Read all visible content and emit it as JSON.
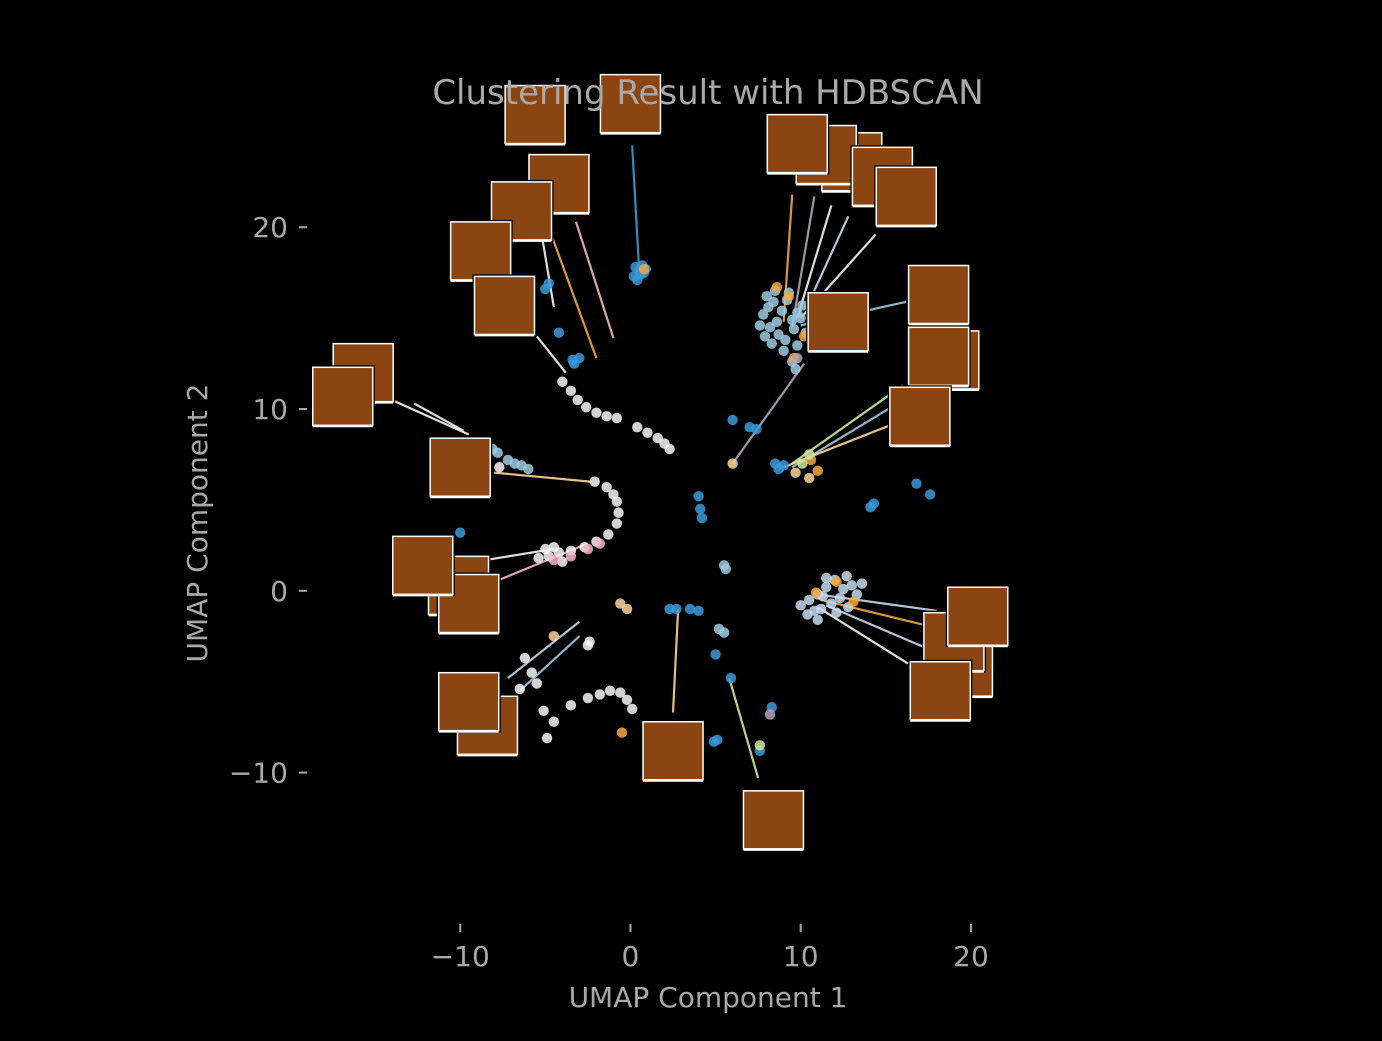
{
  "chart_data": {
    "type": "scatter",
    "title": "Clustering Result with HDBSCAN",
    "xlabel": "UMAP Component 1",
    "ylabel": "UMAP Component 2",
    "xlim": [
      -19,
      22
    ],
    "ylim": [
      -18,
      27
    ],
    "xticks": [
      -10,
      0,
      10,
      20
    ],
    "xtick_labels": [
      "−10",
      "0",
      "10",
      "20"
    ],
    "yticks": [
      -10,
      0,
      10,
      20
    ],
    "ytick_labels": [
      "−10",
      "0",
      "10",
      "20"
    ],
    "grid": false,
    "legend": "none",
    "colors": {
      "background": "#000000",
      "text": "#a8a8a8",
      "thumbnail": "#8b4513",
      "palette": [
        "#3a9ad9",
        "#9ecae1",
        "#c6dbef",
        "#f4a742",
        "#fdd49e",
        "#f7f7f7",
        "#f4b6c2",
        "#cfe89a",
        "#b5a3b8"
      ]
    },
    "clusters": [
      {
        "color": "#3a9ad9",
        "points": [
          [
            0.5,
            17.6
          ],
          [
            0.2,
            17.3
          ],
          [
            0.7,
            17.9
          ],
          [
            0.4,
            17.1
          ],
          [
            0.8,
            17.5
          ],
          [
            0.3,
            17.8
          ],
          [
            0.6,
            17.4
          ],
          [
            0.9,
            17.7
          ],
          [
            -5.0,
            16.6
          ],
          [
            -4.8,
            16.9
          ],
          [
            -4.2,
            14.2
          ],
          [
            4.0,
            5.2
          ],
          [
            4.1,
            4.5
          ],
          [
            4.2,
            4.0
          ],
          [
            5.0,
            -3.5
          ],
          [
            5.9,
            -4.8
          ],
          [
            8.3,
            -6.4
          ],
          [
            7.6,
            -8.8
          ],
          [
            5.1,
            -8.2
          ],
          [
            4.9,
            -8.3
          ],
          [
            16.8,
            5.9
          ],
          [
            17.6,
            5.3
          ],
          [
            14.3,
            4.8
          ],
          [
            14.1,
            4.6
          ],
          [
            -10.0,
            3.2
          ],
          [
            6.0,
            9.4
          ],
          [
            7.0,
            9.0
          ],
          [
            7.4,
            8.9
          ],
          [
            8.5,
            7.0
          ],
          [
            9.0,
            6.9
          ],
          [
            8.7,
            6.7
          ],
          [
            -3.3,
            12.5
          ],
          [
            -3.0,
            12.8
          ],
          [
            -3.4,
            12.7
          ],
          [
            2.3,
            -1.0
          ],
          [
            2.7,
            -1.0
          ],
          [
            3.5,
            -1.0
          ],
          [
            4.0,
            -1.1
          ]
        ]
      },
      {
        "color": "#9ecae1",
        "points": [
          [
            7.8,
            15.2
          ],
          [
            8.1,
            15.6
          ],
          [
            8.4,
            15.9
          ],
          [
            8.6,
            14.8
          ],
          [
            8.9,
            15.4
          ],
          [
            9.2,
            16.0
          ],
          [
            9.5,
            14.9
          ],
          [
            9.8,
            15.3
          ],
          [
            8.2,
            14.5
          ],
          [
            8.7,
            14.1
          ],
          [
            9.1,
            13.8
          ],
          [
            9.6,
            14.4
          ],
          [
            10.0,
            15.0
          ],
          [
            7.6,
            14.6
          ],
          [
            8.0,
            16.2
          ],
          [
            8.5,
            16.5
          ],
          [
            9.3,
            16.4
          ],
          [
            10.3,
            14.2
          ],
          [
            9.8,
            13.5
          ],
          [
            9.0,
            13.2
          ],
          [
            9.5,
            12.6
          ],
          [
            9.7,
            12.2
          ],
          [
            8.3,
            13.6
          ],
          [
            7.9,
            14.0
          ],
          [
            10.1,
            15.7
          ],
          [
            5.5,
            1.4
          ],
          [
            5.6,
            1.2
          ],
          [
            -7.2,
            7.2
          ],
          [
            -6.8,
            7.0
          ],
          [
            -6.4,
            6.9
          ],
          [
            -6.0,
            6.7
          ],
          [
            -8.1,
            7.8
          ],
          [
            -7.8,
            7.6
          ],
          [
            5.2,
            -2.1
          ],
          [
            5.5,
            -2.3
          ]
        ]
      },
      {
        "color": "#c6dbef",
        "points": [
          [
            10.0,
            -0.8
          ],
          [
            10.5,
            -0.5
          ],
          [
            11.0,
            -0.2
          ],
          [
            11.5,
            0.2
          ],
          [
            12.0,
            0.6
          ],
          [
            12.5,
            0.1
          ],
          [
            11.2,
            -1.0
          ],
          [
            10.8,
            -1.1
          ],
          [
            11.8,
            -0.7
          ],
          [
            12.3,
            -0.4
          ],
          [
            13.0,
            0.3
          ],
          [
            13.3,
            -0.2
          ],
          [
            11.5,
            0.7
          ],
          [
            12.1,
            -1.2
          ],
          [
            10.4,
            -1.3
          ],
          [
            11.0,
            -1.6
          ],
          [
            13.6,
            0.4
          ],
          [
            12.8,
            -0.9
          ],
          [
            11.3,
            -0.3
          ],
          [
            12.7,
            0.8
          ]
        ]
      },
      {
        "color": "#f4a742",
        "points": [
          [
            8.6,
            16.7
          ],
          [
            9.3,
            16.2
          ],
          [
            10.2,
            14.0
          ],
          [
            9.6,
            12.8
          ],
          [
            10.9,
            -0.1
          ],
          [
            12.1,
            0.5
          ],
          [
            13.1,
            -0.6
          ],
          [
            0.8,
            17.7
          ],
          [
            -0.5,
            -7.8
          ],
          [
            10.6,
            7.2
          ],
          [
            11.0,
            6.6
          ]
        ]
      },
      {
        "color": "#fdd49e",
        "points": [
          [
            6.0,
            7.0
          ],
          [
            10.5,
            6.2
          ],
          [
            -0.6,
            -0.7
          ],
          [
            -0.2,
            -1.0
          ],
          [
            9.7,
            6.5
          ],
          [
            -4.5,
            -2.5
          ]
        ]
      },
      {
        "color": "#f7f7f7",
        "points": [
          [
            -4.0,
            11.5
          ],
          [
            -3.5,
            11.0
          ],
          [
            -3.1,
            10.5
          ],
          [
            -2.6,
            10.1
          ],
          [
            -2.0,
            9.8
          ],
          [
            -1.4,
            9.6
          ],
          [
            -0.8,
            9.5
          ],
          [
            0.4,
            9.0
          ],
          [
            1.0,
            8.7
          ],
          [
            1.6,
            8.4
          ],
          [
            2.0,
            8.1
          ],
          [
            2.3,
            7.8
          ],
          [
            -2.1,
            6.0
          ],
          [
            -1.4,
            5.7
          ],
          [
            -1.0,
            5.3
          ],
          [
            -0.8,
            4.9
          ],
          [
            -0.7,
            4.3
          ],
          [
            -0.8,
            3.7
          ],
          [
            -1.3,
            3.1
          ],
          [
            -2.0,
            2.7
          ],
          [
            -2.7,
            2.4
          ],
          [
            -3.5,
            2.2
          ],
          [
            -4.2,
            2.1
          ],
          [
            -4.8,
            1.9
          ],
          [
            -5.4,
            1.8
          ],
          [
            -5.0,
            2.3
          ],
          [
            -4.5,
            2.4
          ],
          [
            -4.0,
            1.6
          ],
          [
            -6.2,
            -3.7
          ],
          [
            -5.8,
            -4.5
          ],
          [
            -5.5,
            -5.1
          ],
          [
            -6.5,
            -5.4
          ],
          [
            -4.5,
            -7.2
          ],
          [
            -3.5,
            -6.3
          ],
          [
            -2.5,
            -5.9
          ],
          [
            -1.8,
            -5.7
          ],
          [
            -1.2,
            -5.5
          ],
          [
            -0.6,
            -5.6
          ],
          [
            -0.2,
            -6.0
          ],
          [
            0.1,
            -6.5
          ],
          [
            -5.1,
            -6.6
          ],
          [
            -4.9,
            -8.1
          ],
          [
            -2.4,
            -2.8
          ],
          [
            -2.5,
            -3.0
          ],
          [
            -7.7,
            6.8
          ],
          [
            -8.5,
            8.0
          ]
        ]
      },
      {
        "color": "#f4b6c2",
        "points": [
          [
            -4.5,
            1.7
          ],
          [
            -3.5,
            1.9
          ],
          [
            -2.5,
            2.3
          ],
          [
            -1.8,
            2.6
          ]
        ]
      },
      {
        "color": "#cfe89a",
        "points": [
          [
            7.6,
            -8.5
          ],
          [
            10.5,
            7.5
          ],
          [
            10.1,
            7.0
          ]
        ]
      },
      {
        "color": "#b5a3b8",
        "points": [
          [
            8.2,
            -6.8
          ],
          [
            9.8,
            12.8
          ]
        ]
      }
    ],
    "annotations": [
      {
        "x": -2.0,
        "y": 12.8,
        "img_x": -5.0,
        "img_y": 20.5,
        "color": "#f4a742"
      },
      {
        "x": -4.5,
        "y": 15.6,
        "img_x": -6.0,
        "img_y": 24.0,
        "color": "#f7f7f7"
      },
      {
        "x": -1.0,
        "y": 13.9,
        "img_x": -3.2,
        "img_y": 20.3,
        "color": "#f4b6c2"
      },
      {
        "x": 0.5,
        "y": 17.8,
        "img_x": 0.1,
        "img_y": 24.5,
        "color": "#3a9ad9"
      },
      {
        "x": -3.8,
        "y": 12.0,
        "img_x": -5.5,
        "img_y": 14.0,
        "color": "#f7f7f7"
      },
      {
        "x": -9.5,
        "y": 8.6,
        "img_x": -14.5,
        "img_y": 10.7,
        "color": "#f7f7f7"
      },
      {
        "x": -9.8,
        "y": 8.8,
        "img_x": -12.7,
        "img_y": 10.3,
        "color": "#f7f7f7"
      },
      {
        "x": -2.3,
        "y": 6.0,
        "img_x": -8.0,
        "img_y": 6.5,
        "color": "#fdd49e"
      },
      {
        "x": -4.5,
        "y": 2.3,
        "img_x": -9.8,
        "img_y": 1.5,
        "color": "#f7f7f7"
      },
      {
        "x": -2.5,
        "y": 2.6,
        "img_x": -8.5,
        "img_y": 0.3,
        "color": "#f4b6c2"
      },
      {
        "x": -3.0,
        "y": -1.7,
        "img_x": -7.2,
        "img_y": -4.8,
        "color": "#c6dbef"
      },
      {
        "x": -3.0,
        "y": -2.5,
        "img_x": -6.5,
        "img_y": -5.5,
        "color": "#9ecae1"
      },
      {
        "x": 2.8,
        "y": -1.0,
        "img_x": 2.5,
        "img_y": -6.7,
        "color": "#fdd49e"
      },
      {
        "x": 5.8,
        "y": -4.8,
        "img_x": 7.5,
        "img_y": -10.3,
        "color": "#cfe89a"
      },
      {
        "x": 6.0,
        "y": 7.0,
        "img_x": 10.2,
        "img_y": 12.5,
        "color": "#b5a3b8"
      },
      {
        "x": 9.5,
        "y": 7.0,
        "img_x": 16.0,
        "img_y": 11.3,
        "color": "#cfe89a"
      },
      {
        "x": 9.5,
        "y": 6.8,
        "img_x": 15.5,
        "img_y": 10.2,
        "color": "#9ecae1"
      },
      {
        "x": 9.0,
        "y": 6.8,
        "img_x": 15.5,
        "img_y": 9.2,
        "color": "#fdd49e"
      },
      {
        "x": 9.0,
        "y": 14.8,
        "img_x": 9.5,
        "img_y": 21.8,
        "color": "#f4a742"
      },
      {
        "x": 9.5,
        "y": 14.5,
        "img_x": 10.8,
        "img_y": 21.7,
        "color": "#b5a3b8"
      },
      {
        "x": 9.8,
        "y": 15.0,
        "img_x": 11.8,
        "img_y": 21.2,
        "color": "#f7f7f7"
      },
      {
        "x": 10.3,
        "y": 15.5,
        "img_x": 12.8,
        "img_y": 20.6,
        "color": "#c6dbef"
      },
      {
        "x": 10.0,
        "y": 15.0,
        "img_x": 14.4,
        "img_y": 19.6,
        "color": "#f7f7f7"
      },
      {
        "x": 10.0,
        "y": 14.6,
        "img_x": 16.2,
        "img_y": 15.9,
        "color": "#9ecae1"
      },
      {
        "x": 11.0,
        "y": -0.2,
        "img_x": 18.0,
        "img_y": -1.1,
        "color": "#c6dbef"
      },
      {
        "x": 11.2,
        "y": -0.5,
        "img_x": 17.8,
        "img_y": -2.0,
        "color": "#f4a742"
      },
      {
        "x": 11.5,
        "y": -0.8,
        "img_x": 17.5,
        "img_y": -3.2,
        "color": "#c6dbef"
      },
      {
        "x": 11.0,
        "y": -0.9,
        "img_x": 16.3,
        "img_y": -4.0,
        "color": "#f7f7f7"
      }
    ],
    "thumbnails": [
      {
        "x": -5.6,
        "y": 26.2
      },
      {
        "x": -4.2,
        "y": 22.4
      },
      {
        "x": -6.4,
        "y": 20.9
      },
      {
        "x": -8.8,
        "y": 18.7
      },
      {
        "x": -7.4,
        "y": 15.7
      },
      {
        "x": 0.0,
        "y": 26.8
      },
      {
        "x": 13.0,
        "y": 23.6
      },
      {
        "x": 11.5,
        "y": 24.0
      },
      {
        "x": 14.8,
        "y": 22.8
      },
      {
        "x": 9.8,
        "y": 24.6
      },
      {
        "x": 16.2,
        "y": 21.7
      },
      {
        "x": 12.2,
        "y": 14.8
      },
      {
        "x": 18.1,
        "y": 16.3
      },
      {
        "x": 18.7,
        "y": 12.7
      },
      {
        "x": 18.1,
        "y": 12.9
      },
      {
        "x": 17.0,
        "y": 9.6
      },
      {
        "x": -15.7,
        "y": 12.0
      },
      {
        "x": -16.9,
        "y": 10.7
      },
      {
        "x": -10.0,
        "y": 6.8
      },
      {
        "x": -10.1,
        "y": 0.3
      },
      {
        "x": -9.5,
        "y": -0.7
      },
      {
        "x": -12.2,
        "y": 1.4
      },
      {
        "x": 19.5,
        "y": -4.2
      },
      {
        "x": 19.0,
        "y": -2.8
      },
      {
        "x": 20.4,
        "y": -1.4
      },
      {
        "x": 18.2,
        "y": -5.5
      },
      {
        "x": -8.4,
        "y": -7.4
      },
      {
        "x": -9.5,
        "y": -6.1
      },
      {
        "x": 2.5,
        "y": -8.8
      },
      {
        "x": 8.4,
        "y": -12.6
      }
    ]
  }
}
